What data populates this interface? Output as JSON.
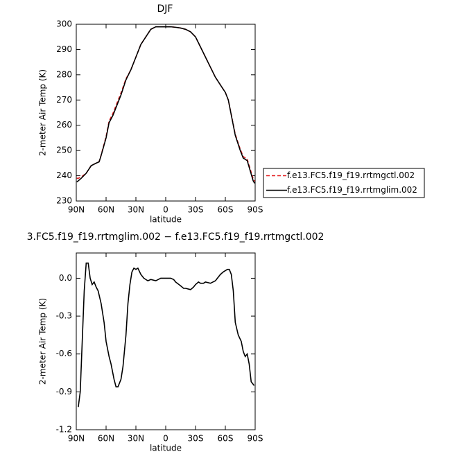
{
  "chart_data": [
    {
      "type": "line",
      "title": "DJF",
      "xlabel": "latitude",
      "ylabel": "2-meter Air Temp (K)",
      "x": [
        89.5,
        88,
        85,
        80,
        75,
        70,
        67,
        65,
        60,
        57,
        53,
        50,
        45,
        40,
        35,
        30,
        25,
        20,
        15,
        10,
        5,
        0,
        -5,
        -10,
        -15,
        -20,
        -25,
        -30,
        -35,
        -40,
        -45,
        -50,
        -55,
        -60,
        -63,
        -65,
        -70,
        -75,
        -78,
        -82,
        -85,
        -88,
        -89.5
      ],
      "xlim": [
        90,
        -90
      ],
      "xticks": [
        {
          "value": 90,
          "label": "90N"
        },
        {
          "value": 60,
          "label": "60N"
        },
        {
          "value": 30,
          "label": "30N"
        },
        0,
        {
          "value": -30,
          "label": "30S"
        },
        {
          "value": -60,
          "label": "60S"
        },
        {
          "value": -90,
          "label": "90S"
        }
      ],
      "ylim": [
        230,
        300
      ],
      "yticks": [
        230,
        240,
        250,
        260,
        270,
        280,
        290,
        300
      ],
      "legend": "right",
      "series": [
        {
          "name": "f.e13.FC5.f19_f19.rrtmgctl.002",
          "color": "#e31a1c",
          "line_style": "dashed",
          "values": [
            239,
            239,
            239.5,
            241,
            244,
            245,
            245.6,
            248.2,
            255.5,
            261.6,
            264.8,
            267.8,
            272.8,
            278.4,
            282,
            287,
            292,
            295,
            298,
            299,
            299,
            299,
            299,
            298.8,
            298.5,
            298,
            297,
            295,
            291,
            287,
            283,
            279,
            276,
            273,
            270,
            266.1,
            256.4,
            250.5,
            247.6,
            246.6,
            242.7,
            238.8,
            237.8
          ]
        },
        {
          "name": "f.e13.FC5.f19_f19.rrtmglim.002",
          "color": "#000000",
          "line_style": "solid",
          "values": [
            237.5,
            238,
            239,
            241,
            244,
            245,
            245.5,
            248,
            255,
            261,
            264,
            267,
            272,
            278,
            282,
            287,
            292,
            295,
            298,
            299,
            299,
            299,
            299,
            298.8,
            298.5,
            298,
            297,
            295,
            291,
            287,
            283,
            279,
            276,
            273,
            270,
            266,
            256,
            250,
            247,
            246,
            242,
            238,
            237
          ]
        }
      ]
    },
    {
      "type": "line",
      "title": "3.FC5.f19_f19.rrtmglim.002 − f.e13.FC5.f19_f19.rrtmgctl.002",
      "xlabel": "latitude",
      "ylabel": "2-meter Air Temp (K)",
      "x": [
        88,
        86,
        84,
        82,
        80,
        78,
        76,
        74,
        72,
        70,
        68,
        65,
        62,
        60,
        57,
        55,
        52,
        50,
        48,
        45,
        43,
        40,
        38,
        36,
        34,
        32,
        30,
        28,
        25,
        22,
        20,
        18,
        15,
        10,
        5,
        0,
        -5,
        -8,
        -10,
        -15,
        -18,
        -20,
        -25,
        -28,
        -30,
        -33,
        -35,
        -38,
        -40,
        -45,
        -50,
        -55,
        -58,
        -62,
        -64,
        -66,
        -68,
        -70,
        -73,
        -76,
        -78,
        -80,
        -82,
        -84,
        -86,
        -89
      ],
      "xlim": [
        90,
        -90
      ],
      "xticks": [
        {
          "value": 90,
          "label": "90N"
        },
        {
          "value": 60,
          "label": "60N"
        },
        {
          "value": 30,
          "label": "30N"
        },
        0,
        {
          "value": -30,
          "label": "30S"
        },
        {
          "value": -60,
          "label": "60S"
        },
        {
          "value": -90,
          "label": "90S"
        }
      ],
      "ylim": [
        -1.2,
        0.2
      ],
      "yticks": [
        {
          "value": -1.2,
          "label": "-1.2"
        },
        {
          "value": -0.9,
          "label": "-0.9"
        },
        {
          "value": -0.6,
          "label": "-0.6"
        },
        {
          "value": -0.3,
          "label": "-0.3"
        },
        {
          "value": 0,
          "label": "0.0"
        }
      ],
      "series": [
        {
          "color": "#000000",
          "line_style": "solid",
          "values": [
            -1.02,
            -0.9,
            -0.5,
            -0.1,
            0.12,
            0.12,
            0.0,
            -0.05,
            -0.03,
            -0.07,
            -0.1,
            -0.2,
            -0.35,
            -0.5,
            -0.62,
            -0.68,
            -0.8,
            -0.86,
            -0.86,
            -0.8,
            -0.7,
            -0.45,
            -0.2,
            -0.05,
            0.05,
            0.08,
            0.07,
            0.08,
            0.03,
            0.0,
            -0.01,
            -0.02,
            -0.01,
            -0.02,
            0.0,
            0.0,
            0.0,
            -0.01,
            -0.03,
            -0.06,
            -0.08,
            -0.08,
            -0.09,
            -0.07,
            -0.05,
            -0.03,
            -0.04,
            -0.04,
            -0.03,
            -0.04,
            -0.02,
            0.03,
            0.05,
            0.07,
            0.07,
            0.03,
            -0.1,
            -0.35,
            -0.45,
            -0.5,
            -0.58,
            -0.62,
            -0.6,
            -0.68,
            -0.82,
            -0.85
          ]
        }
      ]
    }
  ]
}
